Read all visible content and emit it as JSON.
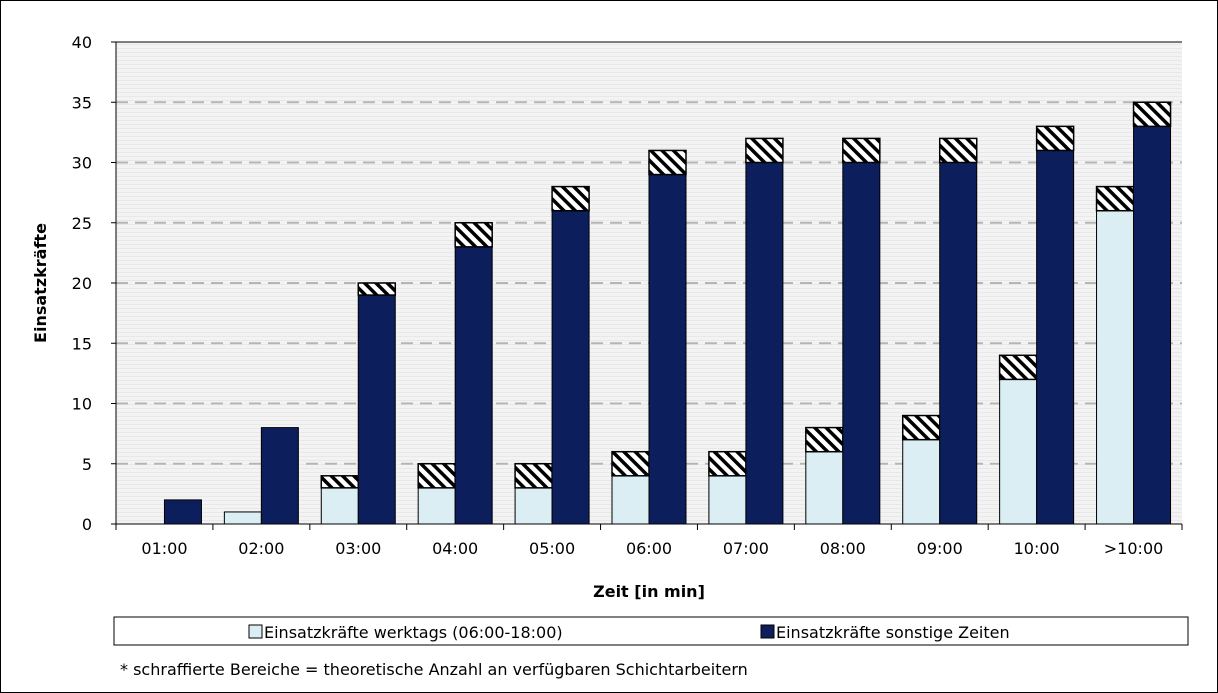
{
  "chart_data": {
    "type": "bar",
    "stacked_segments": true,
    "categories": [
      "01:00",
      "02:00",
      "03:00",
      "04:00",
      "05:00",
      "06:00",
      "07:00",
      "08:00",
      "09:00",
      "10:00",
      ">10:00"
    ],
    "series": [
      {
        "name": "Einsatzkräfte werktags (06:00-18:00)",
        "color": "#dbeef4",
        "values": [
          0,
          1,
          3,
          3,
          3,
          4,
          4,
          6,
          7,
          12,
          26
        ],
        "hatched_extra": [
          0,
          0,
          1,
          2,
          2,
          2,
          2,
          2,
          2,
          2,
          2
        ]
      },
      {
        "name": "Einsatzkräfte sonstige Zeiten",
        "color": "#0c1f5c",
        "values": [
          2,
          8,
          19,
          23,
          26,
          29,
          30,
          30,
          30,
          31,
          33
        ],
        "hatched_extra": [
          0,
          0,
          1,
          2,
          2,
          2,
          2,
          2,
          2,
          2,
          2
        ]
      }
    ],
    "xlabel": "Zeit [in min]",
    "ylabel": "Einsatzkräfte",
    "ylim": [
      0,
      40
    ],
    "yticks": [
      0,
      5,
      10,
      15,
      20,
      25,
      30,
      35,
      40
    ],
    "grid": true,
    "legend_position": "bottom",
    "footnote": "* schraffierte Bereiche = theoretische Anzahl an verfügbaren Schichtarbeitern"
  }
}
